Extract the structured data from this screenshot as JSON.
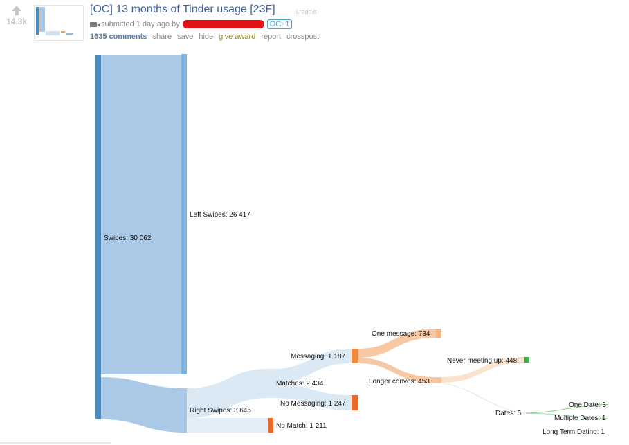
{
  "post": {
    "score": "14.3k",
    "title": "[OC] 13 months of Tinder usage [23F]",
    "domain": "i.redd.it",
    "submitted": "submitted 1 day ago by",
    "flair": "OC: 1",
    "buttons": {
      "comments": "1635 comments",
      "share": "share",
      "save": "save",
      "hide": "hide",
      "give_award": "give award",
      "report": "report",
      "crosspost": "crosspost"
    }
  },
  "sankey": {
    "nodes": {
      "swipes": "Swipes: 30 062",
      "left": "Left Swipes: 26 417",
      "right": "Right Swipes: 3 645",
      "matches": "Matches: 2 434",
      "no_match": "No Match: 1 211",
      "messaging": "Messaging: 1 187",
      "no_messaging": "No Messaging: 1 247",
      "one_message": "One message: 734",
      "longer_convos": "Longer convos: 453",
      "never_meeting": "Never meeting up: 448",
      "dates": "Dates: 5",
      "one_date": "One Date: 3",
      "multiple_dates": "Multiple Dates: 1",
      "long_term": "Long Term Dating: 1"
    },
    "colors": {
      "blue_dark": "#4a8bc4",
      "blue_light": "#a9c9e6",
      "blue_pale": "#dbe9f5",
      "orange": "#e8692a",
      "orange_light": "#f6b37d",
      "green": "#3fae4a"
    }
  }
}
